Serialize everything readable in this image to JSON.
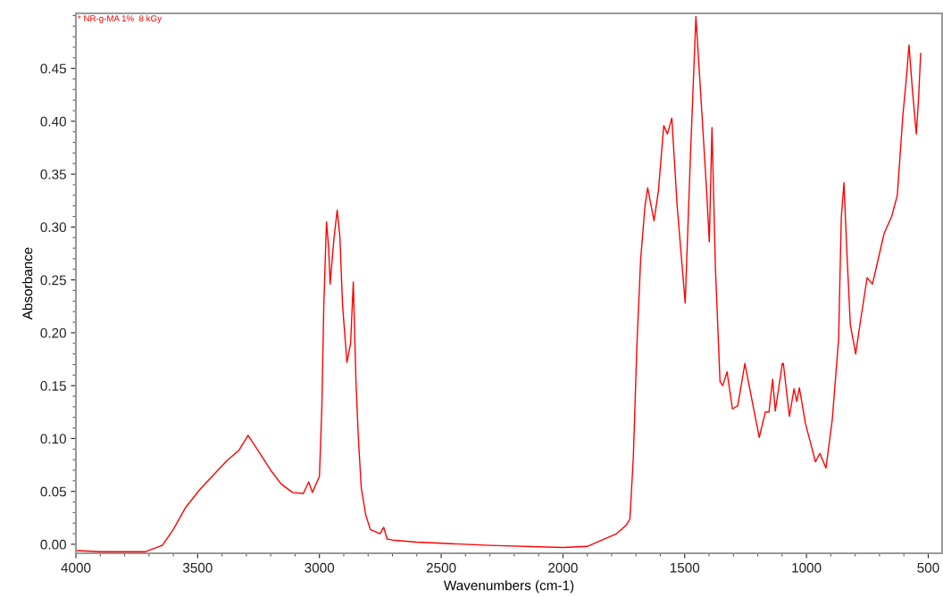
{
  "chart_data": {
    "type": "line",
    "xlabel": "Wavenumbers (cm-1)",
    "ylabel": "Absorbance",
    "xlim": [
      4000,
      443
    ],
    "ylim": [
      -0.0085,
      0.502
    ],
    "xticks": [
      4000,
      3500,
      3000,
      2500,
      2000,
      1500,
      1000,
      500
    ],
    "yticks": [
      {
        "value": 0,
        "label": "0.00"
      },
      {
        "value": 0.05,
        "label": "0.05"
      },
      {
        "value": 0.1,
        "label": "0.10"
      },
      {
        "value": 0.15,
        "label": "0.15"
      },
      {
        "value": 0.2,
        "label": "0.20"
      },
      {
        "value": 0.25,
        "label": "0.25"
      },
      {
        "value": 0.3,
        "label": "0.30"
      },
      {
        "value": 0.35,
        "label": "0.35"
      },
      {
        "value": 0.4,
        "label": "0.40"
      },
      {
        "value": 0.45,
        "label": "0.45"
      }
    ],
    "grid": false,
    "legend": "top left",
    "marker": "none",
    "line_style": "solid",
    "series": [
      {
        "name": "* NR-g-MA 1%  8 kGy",
        "color": "#ff0000",
        "x": [
          4000,
          3894,
          3714,
          3645,
          3600,
          3549,
          3490,
          3425,
          3380,
          3330,
          3293,
          3250,
          3200,
          3157,
          3110,
          3066,
          3044,
          3029,
          3000,
          2990,
          2982,
          2971,
          2962,
          2956,
          2940,
          2927,
          2916,
          2905,
          2887,
          2872,
          2861,
          2850,
          2840,
          2828,
          2810,
          2791,
          2751,
          2736,
          2722,
          2700,
          2600,
          2500,
          2300,
          2000,
          1900,
          1850,
          1780,
          1740,
          1725,
          1711,
          1696,
          1681,
          1663,
          1652,
          1626,
          1608,
          1586,
          1571,
          1553,
          1531,
          1498,
          1476,
          1454,
          1429,
          1410,
          1399,
          1388,
          1374,
          1355,
          1344,
          1326,
          1304,
          1282,
          1253,
          1194,
          1169,
          1154,
          1139,
          1128,
          1099,
          1095,
          1070,
          1051,
          1040,
          1029,
          1004,
          963,
          945,
          920,
          894,
          868,
          857,
          846,
          835,
          820,
          798,
          777,
          751,
          729,
          700,
          681,
          650,
          627,
          604,
          590,
          579,
          565,
          549,
          540,
          531
        ],
        "values": [
          -0.006,
          -0.007,
          -0.007,
          -0.001,
          0.014,
          0.035,
          0.052,
          0.068,
          0.079,
          0.089,
          0.103,
          0.088,
          0.07,
          0.057,
          0.049,
          0.048,
          0.059,
          0.049,
          0.064,
          0.13,
          0.226,
          0.305,
          0.28,
          0.246,
          0.29,
          0.316,
          0.291,
          0.226,
          0.172,
          0.19,
          0.248,
          0.154,
          0.1,
          0.053,
          0.028,
          0.014,
          0.01,
          0.016,
          0.005,
          0.004,
          0.002,
          0.001,
          -0.001,
          -0.003,
          -0.002,
          0.003,
          0.01,
          0.018,
          0.024,
          0.082,
          0.19,
          0.269,
          0.32,
          0.337,
          0.306,
          0.334,
          0.396,
          0.388,
          0.403,
          0.32,
          0.228,
          0.37,
          0.499,
          0.406,
          0.334,
          0.286,
          0.394,
          0.262,
          0.154,
          0.15,
          0.163,
          0.128,
          0.131,
          0.171,
          0.101,
          0.125,
          0.125,
          0.156,
          0.126,
          0.171,
          0.171,
          0.121,
          0.147,
          0.135,
          0.148,
          0.114,
          0.078,
          0.086,
          0.072,
          0.118,
          0.194,
          0.309,
          0.342,
          0.281,
          0.208,
          0.18,
          0.213,
          0.252,
          0.246,
          0.275,
          0.294,
          0.31,
          0.33,
          0.406,
          0.44,
          0.472,
          0.43,
          0.388,
          0.42,
          0.464
        ]
      }
    ]
  }
}
